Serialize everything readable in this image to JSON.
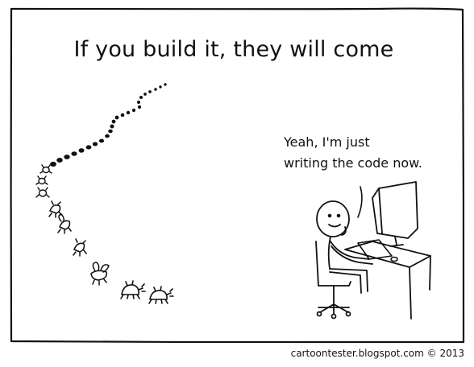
{
  "comic": {
    "title": "If you build it, they will come",
    "speech_lines": [
      "Yeah, I'm just",
      "writing the code now."
    ],
    "credit": "cartoontester.blogspot.com © 2013"
  },
  "colors": {
    "ink": "#111111",
    "paper": "#ffffff"
  }
}
